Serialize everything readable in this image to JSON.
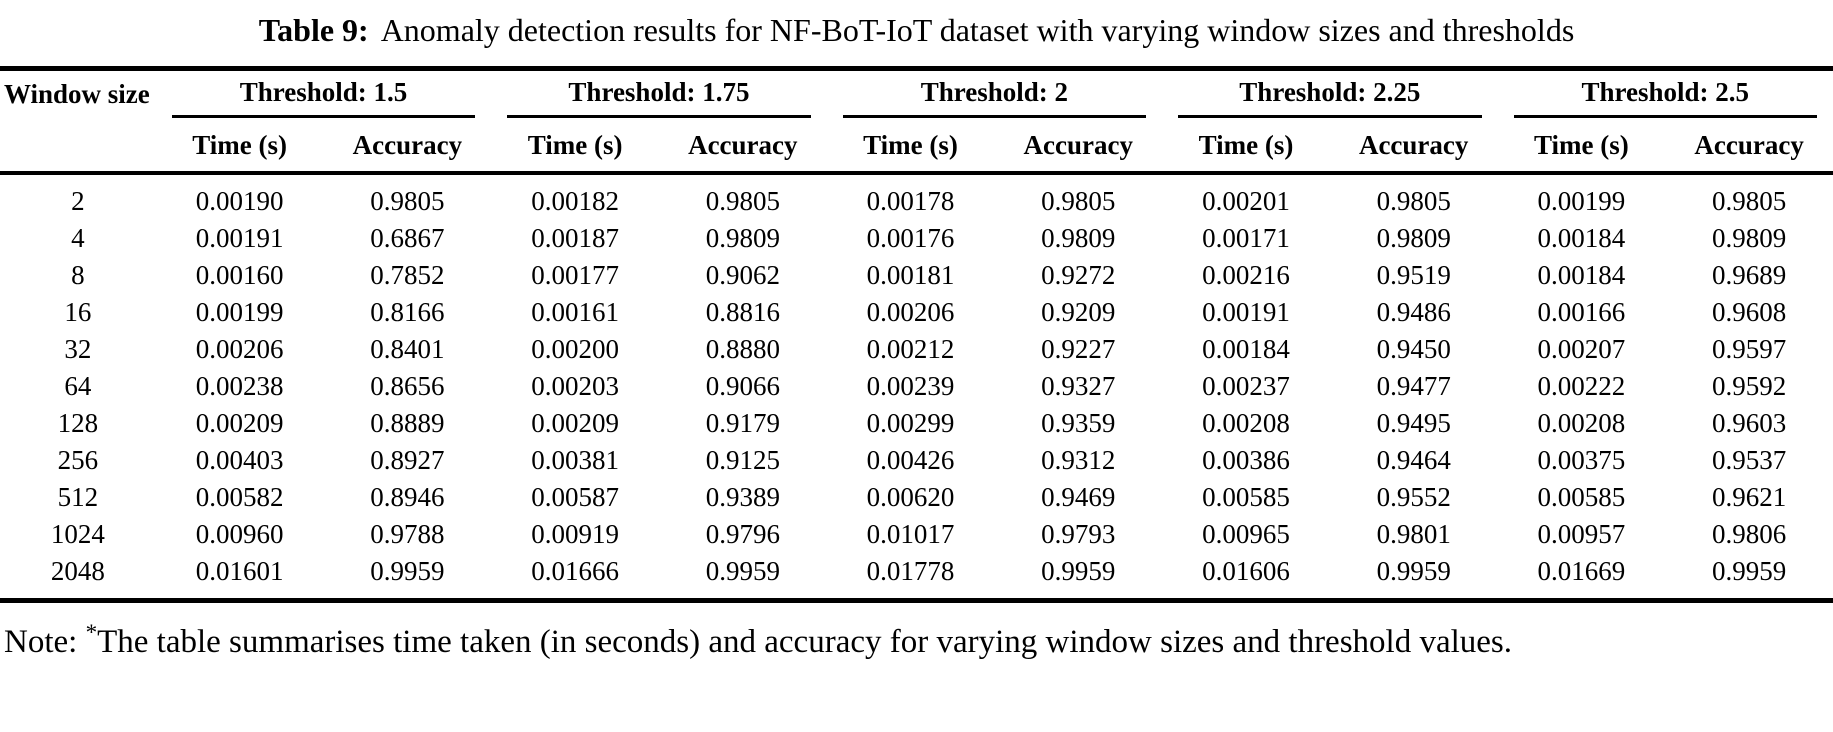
{
  "title": {
    "label": "Table 9:",
    "text": "Anomaly detection results for NF-BoT-IoT dataset with varying window sizes and thresholds"
  },
  "table": {
    "row_header": "Window size",
    "col_groups": [
      {
        "label": "Threshold: 1.5"
      },
      {
        "label": "Threshold: 1.75"
      },
      {
        "label": "Threshold: 2"
      },
      {
        "label": "Threshold: 2.25"
      },
      {
        "label": "Threshold: 2.5"
      }
    ],
    "sub_headers": {
      "time": "Time (s)",
      "accuracy": "Accuracy"
    },
    "rows": [
      {
        "window_size": "2",
        "values": [
          "0.00190",
          "0.9805",
          "0.00182",
          "0.9805",
          "0.00178",
          "0.9805",
          "0.00201",
          "0.9805",
          "0.00199",
          "0.9805"
        ]
      },
      {
        "window_size": "4",
        "values": [
          "0.00191",
          "0.6867",
          "0.00187",
          "0.9809",
          "0.00176",
          "0.9809",
          "0.00171",
          "0.9809",
          "0.00184",
          "0.9809"
        ]
      },
      {
        "window_size": "8",
        "values": [
          "0.00160",
          "0.7852",
          "0.00177",
          "0.9062",
          "0.00181",
          "0.9272",
          "0.00216",
          "0.9519",
          "0.00184",
          "0.9689"
        ]
      },
      {
        "window_size": "16",
        "values": [
          "0.00199",
          "0.8166",
          "0.00161",
          "0.8816",
          "0.00206",
          "0.9209",
          "0.00191",
          "0.9486",
          "0.00166",
          "0.9608"
        ]
      },
      {
        "window_size": "32",
        "values": [
          "0.00206",
          "0.8401",
          "0.00200",
          "0.8880",
          "0.00212",
          "0.9227",
          "0.00184",
          "0.9450",
          "0.00207",
          "0.9597"
        ]
      },
      {
        "window_size": "64",
        "values": [
          "0.00238",
          "0.8656",
          "0.00203",
          "0.9066",
          "0.00239",
          "0.9327",
          "0.00237",
          "0.9477",
          "0.00222",
          "0.9592"
        ]
      },
      {
        "window_size": "128",
        "values": [
          "0.00209",
          "0.8889",
          "0.00209",
          "0.9179",
          "0.00299",
          "0.9359",
          "0.00208",
          "0.9495",
          "0.00208",
          "0.9603"
        ]
      },
      {
        "window_size": "256",
        "values": [
          "0.00403",
          "0.8927",
          "0.00381",
          "0.9125",
          "0.00426",
          "0.9312",
          "0.00386",
          "0.9464",
          "0.00375",
          "0.9537"
        ]
      },
      {
        "window_size": "512",
        "values": [
          "0.00582",
          "0.8946",
          "0.00587",
          "0.9389",
          "0.00620",
          "0.9469",
          "0.00585",
          "0.9552",
          "0.00585",
          "0.9621"
        ]
      },
      {
        "window_size": "1024",
        "values": [
          "0.00960",
          "0.9788",
          "0.00919",
          "0.9796",
          "0.01017",
          "0.9793",
          "0.00965",
          "0.9801",
          "0.00957",
          "0.9806"
        ]
      },
      {
        "window_size": "2048",
        "values": [
          "0.01601",
          "0.9959",
          "0.01666",
          "0.9959",
          "0.01778",
          "0.9959",
          "0.01606",
          "0.9959",
          "0.01669",
          "0.9959"
        ]
      }
    ]
  },
  "note": {
    "prefix": "Note: ",
    "star": "*",
    "text": "The table summarises time taken (in seconds) and accuracy for varying window sizes and threshold values."
  }
}
